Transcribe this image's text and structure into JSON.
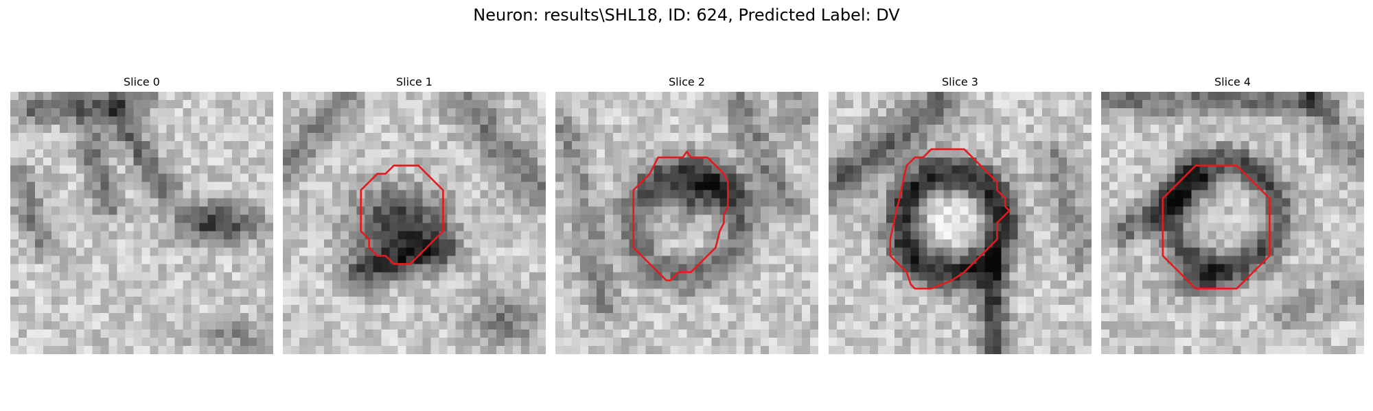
{
  "figure": {
    "title": "Neuron: results\\SHL18, ID: 624, Predicted Label: DV"
  },
  "contour_color": "#e41a1c",
  "colormap": "gray",
  "panels": [
    {
      "title": "Slice 0",
      "has_contour": false
    },
    {
      "title": "Slice 1",
      "has_contour": true
    },
    {
      "title": "Slice 2",
      "has_contour": true
    },
    {
      "title": "Slice 3",
      "has_contour": true
    },
    {
      "title": "Slice 4",
      "has_contour": true
    }
  ]
}
